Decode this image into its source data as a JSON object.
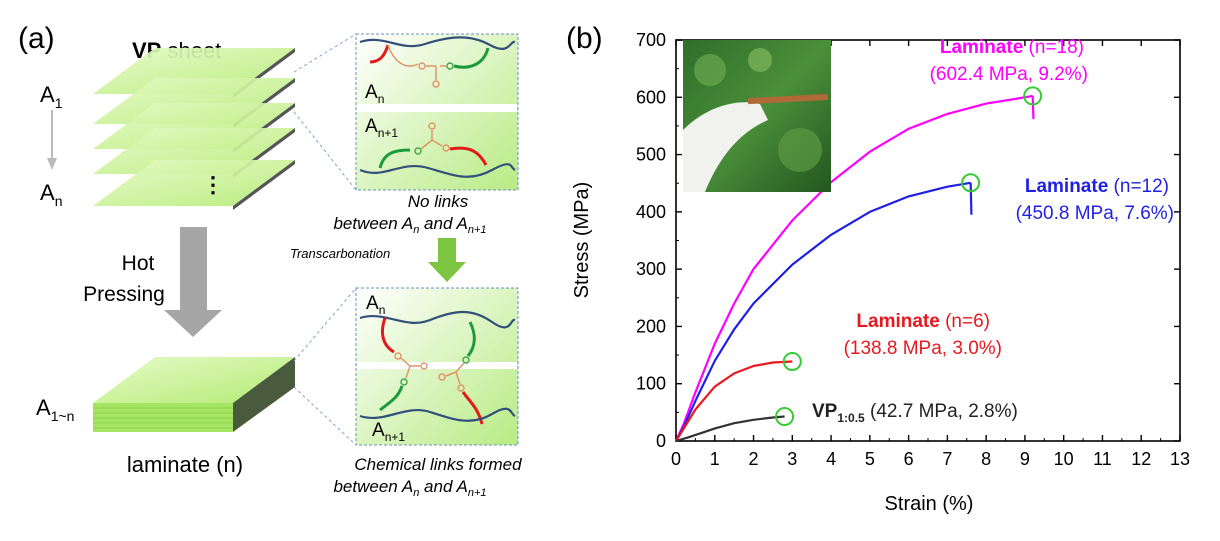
{
  "panel_a": {
    "label": "(a)",
    "sheet_title_bold": "VP",
    "sheet_title_rest": " sheet",
    "layer_first_base": "A",
    "layer_first_sub": "1",
    "layer_last_base": "A",
    "layer_last_sub": "n",
    "hot_pressing_line1": "Hot",
    "hot_pressing_line2": "Pressing",
    "laminate_stack_base": "A",
    "laminate_stack_sub": "1~n",
    "laminate_caption": "laminate (n)",
    "box_top_label1_base": "A",
    "box_top_label1_sub": "n",
    "box_top_label2_base": "A",
    "box_top_label2_sub": "n+1",
    "no_links_line1": "No links",
    "no_links_line2_pre": "between A",
    "no_links_line2_sub1": "n",
    "no_links_line2_mid": " and A",
    "no_links_line2_sub2": "n+1",
    "transcarbonation": "Transcarbonation",
    "box_bottom_label1_base": "A",
    "box_bottom_label1_sub": "n",
    "box_bottom_label2_base": "A",
    "box_bottom_label2_sub": "n+1",
    "chem_links_line1": "Chemical links formed",
    "chem_links_line2_pre": "between A",
    "chem_links_line2_sub1": "n",
    "chem_links_line2_mid": " and A",
    "chem_links_line2_sub2": "n+1",
    "sheet_color": "#c5f08c",
    "arrow_gray": "#a6a6a6",
    "arrow_green": "#7cc540",
    "chain_blue": "#34507a",
    "chain_red": "#e31a1c",
    "chain_green": "#1a9a3a"
  },
  "chart_data": {
    "type": "line",
    "panel_label": "(b)",
    "xlabel": "Strain (%)",
    "ylabel": "Stress (MPa)",
    "xlim": [
      0,
      13
    ],
    "ylim": [
      0,
      700
    ],
    "xticks": [
      "0",
      "1",
      "2",
      "3",
      "4",
      "5",
      "6",
      "7",
      "8",
      "9",
      "10",
      "11",
      "12",
      "13"
    ],
    "yticks": [
      "0",
      "100",
      "200",
      "300",
      "400",
      "500",
      "600",
      "700"
    ],
    "grid": false,
    "series": [
      {
        "name": "Laminate (n=18)",
        "color": "#ff00ff",
        "x": [
          0,
          0.2,
          0.5,
          1.0,
          1.5,
          2.0,
          3.0,
          4.0,
          5.0,
          6.0,
          7.0,
          8.0,
          9.0,
          9.2
        ],
        "y": [
          0,
          30,
          85,
          170,
          240,
          300,
          385,
          452,
          505,
          545,
          571,
          589,
          600,
          602.4
        ],
        "drop": [
          9.2,
          602.4,
          9.22,
          562
        ],
        "label_bold": "Laminate",
        "label_rest": " (n=18)",
        "label_values": "(602.4 MPa, 9.2%)"
      },
      {
        "name": "Laminate (n=12)",
        "color": "#1f1fe6",
        "x": [
          0,
          0.2,
          0.5,
          1.0,
          1.5,
          2.0,
          3.0,
          4.0,
          5.0,
          6.0,
          7.0,
          7.6
        ],
        "y": [
          0,
          25,
          70,
          140,
          195,
          240,
          308,
          360,
          400,
          427,
          444,
          450.8
        ],
        "drop": [
          7.6,
          450.8,
          7.62,
          395
        ],
        "label_bold": "Laminate",
        "label_rest": " (n=12)",
        "label_values": "(450.8 MPa, 7.6%)"
      },
      {
        "name": "Laminate (n=6)",
        "color": "#e8191e",
        "x": [
          0,
          0.2,
          0.5,
          1.0,
          1.5,
          2.0,
          2.5,
          3.0
        ],
        "y": [
          0,
          22,
          55,
          95,
          118,
          131,
          137,
          138.8
        ],
        "label_bold": "Laminate",
        "label_rest": " (n=6)",
        "label_values": "(138.8 MPa, 3.0%)"
      },
      {
        "name": "VP1:0.5",
        "color": "#333333",
        "x": [
          0,
          0.3,
          0.7,
          1.0,
          1.5,
          2.0,
          2.5,
          2.8
        ],
        "y": [
          0,
          6,
          15,
          22,
          31,
          37,
          41,
          42.7
        ],
        "label_bold": "VP",
        "label_sub": "1:0.5",
        "label_values": " (42.7 MPa, 2.8%)"
      }
    ],
    "break_points": [
      {
        "x": 9.2,
        "y": 602.4
      },
      {
        "x": 7.6,
        "y": 450.8
      },
      {
        "x": 3.0,
        "y": 138.8
      },
      {
        "x": 2.8,
        "y": 42.7
      }
    ],
    "marker_color": "#33cc33"
  }
}
